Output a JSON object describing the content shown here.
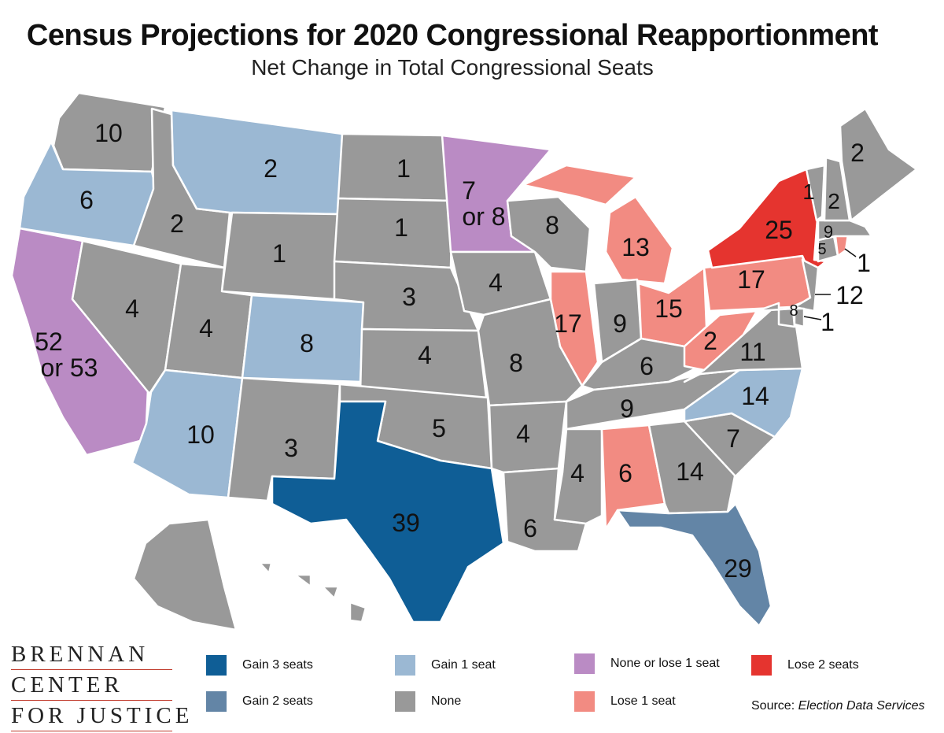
{
  "title": "Census Projections for 2020 Congressional Reapportionment",
  "subtitle": "Net Change in Total Congressional Seats",
  "colors": {
    "gain3": "#0f5e96",
    "gain2": "#6385a6",
    "gain1": "#9bb8d3",
    "none": "#999999",
    "none_or_lose1": "#ba8bc4",
    "lose1": "#f28b82",
    "lose2": "#e5342f"
  },
  "states": {
    "WA": {
      "seats": "10",
      "change": "none"
    },
    "OR": {
      "seats": "6",
      "change": "gain1"
    },
    "CA": {
      "seats": "52 or 53",
      "seats_line1": "52",
      "seats_line2": "or 53",
      "change": "none_or_lose1"
    },
    "ID": {
      "seats": "2",
      "change": "none"
    },
    "NV": {
      "seats": "4",
      "change": "none"
    },
    "MT": {
      "seats": "2",
      "change": "gain1"
    },
    "WY": {
      "seats": "1",
      "change": "none"
    },
    "UT": {
      "seats": "4",
      "change": "none"
    },
    "AZ": {
      "seats": "10",
      "change": "gain1"
    },
    "CO": {
      "seats": "8",
      "change": "gain1"
    },
    "NM": {
      "seats": "3",
      "change": "none"
    },
    "ND": {
      "seats": "1",
      "change": "none"
    },
    "SD": {
      "seats": "1",
      "change": "none"
    },
    "NE": {
      "seats": "3",
      "change": "none"
    },
    "KS": {
      "seats": "4",
      "change": "none"
    },
    "OK": {
      "seats": "5",
      "change": "none"
    },
    "TX": {
      "seats": "39",
      "change": "gain3"
    },
    "MN": {
      "seats": "7 or 8",
      "seats_line1": "7",
      "seats_line2": "or 8",
      "change": "none_or_lose1"
    },
    "IA": {
      "seats": "4",
      "change": "none"
    },
    "MO": {
      "seats": "8",
      "change": "none"
    },
    "AR": {
      "seats": "4",
      "change": "none"
    },
    "LA": {
      "seats": "6",
      "change": "none"
    },
    "WI": {
      "seats": "8",
      "change": "none"
    },
    "IL": {
      "seats": "17",
      "change": "lose1"
    },
    "MI": {
      "seats": "13",
      "change": "lose1"
    },
    "IN": {
      "seats": "9",
      "change": "none"
    },
    "OH": {
      "seats": "15",
      "change": "lose1"
    },
    "KY": {
      "seats": "6",
      "change": "none"
    },
    "TN": {
      "seats": "9",
      "change": "none"
    },
    "MS": {
      "seats": "4",
      "change": "none"
    },
    "AL": {
      "seats": "6",
      "change": "lose1"
    },
    "GA": {
      "seats": "14",
      "change": "none"
    },
    "FL": {
      "seats": "29",
      "change": "gain2"
    },
    "SC": {
      "seats": "7",
      "change": "none"
    },
    "NC": {
      "seats": "14",
      "change": "gain1"
    },
    "VA": {
      "seats": "11",
      "change": "none"
    },
    "WV": {
      "seats": "2",
      "change": "lose1"
    },
    "PA": {
      "seats": "17",
      "change": "lose1"
    },
    "NY": {
      "seats": "25",
      "change": "lose2"
    },
    "NJ": {
      "seats": "12",
      "change": "none"
    },
    "DE": {
      "seats": "1",
      "change": "none"
    },
    "MD": {
      "seats": "8",
      "change": "none"
    },
    "CT": {
      "seats": "5",
      "change": "none"
    },
    "RI": {
      "seats": "1",
      "change": "lose1"
    },
    "MA": {
      "seats": "9",
      "change": "none"
    },
    "VT": {
      "seats": "1",
      "change": "none"
    },
    "NH": {
      "seats": "2",
      "change": "none"
    },
    "ME": {
      "seats": "2",
      "change": "none"
    },
    "AK": {
      "seats": "",
      "change": "none"
    },
    "HI": {
      "seats": "",
      "change": "none"
    }
  },
  "legend": [
    {
      "label": "Gain 3 seats",
      "key": "gain3"
    },
    {
      "label": "Gain 2 seats",
      "key": "gain2"
    },
    {
      "label": "Gain 1 seat",
      "key": "gain1"
    },
    {
      "label": "None",
      "key": "none"
    },
    {
      "label": "None or lose 1 seat",
      "key": "none_or_lose1"
    },
    {
      "label": "Lose 1 seat",
      "key": "lose1"
    },
    {
      "label": "Lose 2 seats",
      "key": "lose2"
    }
  ],
  "logo": {
    "line1": "BRENNAN",
    "line2": "CENTER",
    "line3": "FOR JUSTICE"
  },
  "source": {
    "prefix": "Source: ",
    "name": "Election Data Services"
  }
}
